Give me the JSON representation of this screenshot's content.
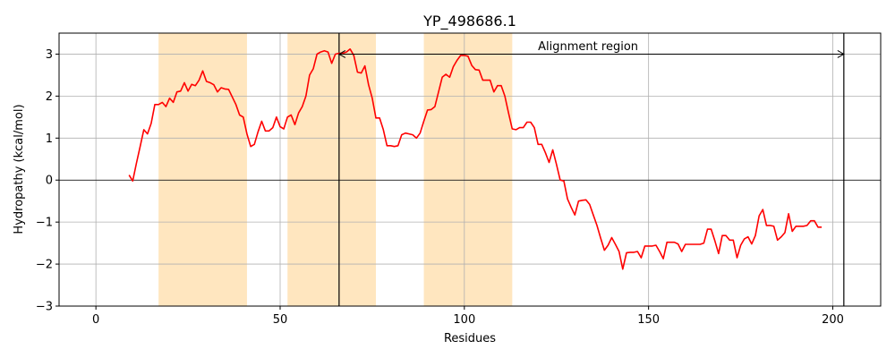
{
  "chart_data": {
    "type": "line",
    "title": "YP_498686.1",
    "xlabel": "Residues",
    "ylabel": "Hydropathy (kcal/mol)",
    "xlim": [
      -10,
      213
    ],
    "ylim": [
      -3,
      3.5
    ],
    "xticks": [
      0,
      50,
      100,
      150,
      200
    ],
    "yticks": [
      -3,
      -2,
      -1,
      0,
      1,
      2,
      3
    ],
    "grid": true,
    "colors": {
      "line": "#ff0000",
      "band": "#ffe6bf",
      "axis": "#000000",
      "grid": "#b0b0b0"
    },
    "shaded_regions": [
      [
        17,
        41
      ],
      [
        52,
        76
      ],
      [
        89,
        113
      ]
    ],
    "vlines": [
      66,
      203
    ],
    "hline": 0,
    "annotation": {
      "text": "Alignment region",
      "x_start": 66,
      "x_end": 203,
      "y": 3,
      "text_x": 120,
      "text_y": 3.1
    },
    "series": [
      {
        "x": [
          9,
          10,
          11,
          12,
          13,
          14,
          15,
          16,
          17,
          18,
          19,
          20,
          21,
          22,
          23,
          24,
          25,
          26,
          27,
          28,
          29,
          30,
          31,
          32,
          33,
          34,
          35,
          36,
          37,
          38,
          39,
          40,
          41,
          42,
          43,
          44,
          45,
          46,
          47,
          48,
          49,
          50,
          51,
          52,
          53,
          54,
          55,
          56,
          57,
          58,
          59,
          60,
          61,
          62,
          63,
          64,
          65,
          66,
          67,
          68,
          69,
          70,
          71,
          72,
          73,
          74,
          75,
          76,
          77,
          78,
          79,
          80,
          81,
          82,
          83,
          84,
          85,
          86,
          87,
          88,
          89,
          90,
          91,
          92,
          93,
          94,
          95,
          96,
          97,
          98,
          99,
          100,
          101,
          102,
          103,
          104,
          105,
          106,
          107,
          108,
          109,
          110,
          111,
          112,
          113,
          114,
          115,
          116,
          117,
          118,
          119,
          120,
          121,
          122,
          123,
          124,
          125,
          126,
          127,
          128,
          129,
          130,
          131,
          132,
          133,
          134,
          135,
          136,
          137,
          138,
          139,
          140,
          141,
          142,
          143,
          144,
          145,
          146,
          147,
          148,
          149,
          150,
          151,
          152,
          153,
          154,
          155,
          156,
          157,
          158,
          159,
          160,
          161,
          162,
          163,
          164,
          165,
          166,
          167,
          168,
          169,
          170,
          171,
          172,
          173,
          174,
          175,
          176,
          177,
          178,
          179,
          180,
          181,
          182,
          183,
          184,
          185,
          186,
          187,
          188,
          189,
          190,
          191,
          192,
          193,
          194,
          195,
          196,
          197
        ],
        "y": [
          0.12,
          -0.02,
          0.4,
          0.8,
          1.2,
          1.1,
          1.35,
          1.8,
          1.8,
          1.85,
          1.75,
          1.95,
          1.85,
          2.1,
          2.12,
          2.32,
          2.12,
          2.28,
          2.25,
          2.38,
          2.6,
          2.35,
          2.32,
          2.27,
          2.1,
          2.2,
          2.17,
          2.16,
          1.98,
          1.8,
          1.55,
          1.5,
          1.1,
          0.8,
          0.85,
          1.15,
          1.4,
          1.17,
          1.17,
          1.25,
          1.5,
          1.27,
          1.22,
          1.5,
          1.55,
          1.32,
          1.6,
          1.75,
          2.0,
          2.5,
          2.65,
          3.0,
          3.05,
          3.08,
          3.05,
          2.78,
          3.0,
          3.02,
          3.02,
          3.05,
          3.12,
          2.97,
          2.57,
          2.55,
          2.72,
          2.27,
          1.95,
          1.48,
          1.48,
          1.2,
          0.82,
          0.82,
          0.8,
          0.82,
          1.08,
          1.12,
          1.1,
          1.08,
          1.0,
          1.12,
          1.4,
          1.67,
          1.68,
          1.75,
          2.1,
          2.45,
          2.52,
          2.45,
          2.7,
          2.85,
          2.97,
          2.97,
          2.95,
          2.73,
          2.63,
          2.62,
          2.38,
          2.38,
          2.38,
          2.1,
          2.25,
          2.25,
          2.0,
          1.6,
          1.22,
          1.2,
          1.25,
          1.25,
          1.38,
          1.38,
          1.25,
          0.85,
          0.85,
          0.65,
          0.42,
          0.72,
          0.38,
          0.0,
          -0.02,
          -0.45,
          -0.65,
          -0.83,
          -0.5,
          -0.48,
          -0.47,
          -0.58,
          -0.83,
          -1.08,
          -1.38,
          -1.67,
          -1.55,
          -1.37,
          -1.53,
          -1.7,
          -2.12,
          -1.73,
          -1.72,
          -1.72,
          -1.7,
          -1.85,
          -1.57,
          -1.57,
          -1.57,
          -1.55,
          -1.7,
          -1.87,
          -1.48,
          -1.48,
          -1.48,
          -1.52,
          -1.7,
          -1.53,
          -1.53,
          -1.53,
          -1.53,
          -1.53,
          -1.5,
          -1.17,
          -1.17,
          -1.45,
          -1.75,
          -1.32,
          -1.32,
          -1.43,
          -1.43,
          -1.85,
          -1.55,
          -1.4,
          -1.35,
          -1.52,
          -1.32,
          -0.85,
          -0.7,
          -1.08,
          -1.08,
          -1.1,
          -1.43,
          -1.35,
          -1.25,
          -0.8,
          -1.22,
          -1.1,
          -1.1,
          -1.1,
          -1.08,
          -0.97,
          -0.97,
          -1.12,
          -1.12
        ]
      }
    ]
  }
}
